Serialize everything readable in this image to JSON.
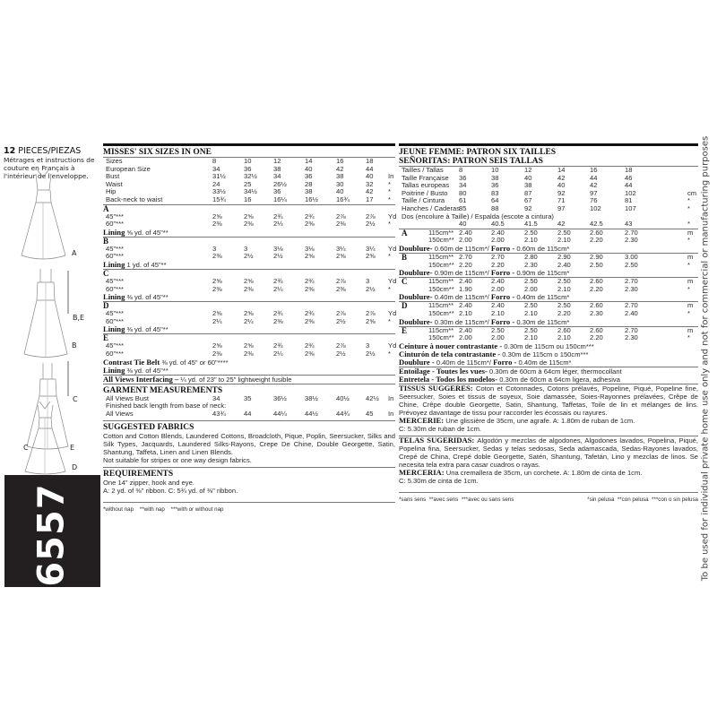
{
  "left": {
    "pieces_count": "12",
    "pieces_label": "PIECES/PIEZAS",
    "french_note": "Métrages et instructions de couture en Français à l'intérieur de l'enveloppe.",
    "view_labels": [
      "A",
      "B,E",
      "B",
      "C",
      "C",
      "E",
      "D"
    ],
    "pattern_number": "6557"
  },
  "vertical_notice": "To be used for individual private home use only and not for commercial or manufacturing purposes",
  "misses": {
    "title": "MISSES' SIX SIZES IN ONE",
    "size_rows": [
      {
        "label": "Sizes",
        "values": [
          "8",
          "10",
          "12",
          "14",
          "16",
          "18"
        ],
        "unit": ""
      },
      {
        "label": "European Size",
        "values": [
          "34",
          "36",
          "38",
          "40",
          "42",
          "44"
        ],
        "unit": ""
      },
      {
        "label": "Bust",
        "values": [
          "31½",
          "32½",
          "34",
          "36",
          "38",
          "40"
        ],
        "unit": "In"
      },
      {
        "label": "Waist",
        "values": [
          "24",
          "25",
          "26½",
          "28",
          "30",
          "32"
        ],
        "unit": "*"
      },
      {
        "label": "Hip",
        "values": [
          "33½",
          "34½",
          "36",
          "38",
          "40",
          "42"
        ],
        "unit": "*"
      },
      {
        "label": "Back-neck to waist",
        "values": [
          "15¾",
          "16",
          "16¼",
          "16½",
          "16¾",
          "17"
        ],
        "unit": "*"
      }
    ],
    "views": [
      {
        "letter": "A",
        "rows": [
          {
            "label": "45\"***",
            "values": [
              "2⅝",
              "2⅝",
              "2¾",
              "2¾",
              "2⅞",
              "2⅞"
            ],
            "unit": "Yd"
          },
          {
            "label": "60\"***",
            "values": [
              "2⅜",
              "2⅜",
              "2¼",
              "2⅜",
              "2⅜",
              "2½"
            ],
            "unit": "*"
          }
        ],
        "notes": [
          [
            {
              "b": true,
              "t": "Lining "
            },
            {
              "b": false,
              "t": "⅝ yd. of 45\"**"
            }
          ]
        ]
      },
      {
        "letter": "B",
        "rows": [
          {
            "label": "45\"***",
            "values": [
              "3",
              "3",
              "3⅛",
              "3⅛",
              "3¼",
              "3¼"
            ],
            "unit": "Yd"
          },
          {
            "label": "60\"***",
            "values": [
              "2⅜",
              "2½",
              "2½",
              "2⅝",
              "2⅝",
              "2⅝"
            ],
            "unit": "*"
          }
        ],
        "notes": [
          [
            {
              "b": true,
              "t": "Lining "
            },
            {
              "b": false,
              "t": "1 yd. of 45\"**"
            }
          ]
        ]
      },
      {
        "letter": "C",
        "rows": [
          {
            "label": "45\"***",
            "values": [
              "2⅝",
              "2⅝",
              "2¾",
              "2¾",
              "2⅞",
              "3"
            ],
            "unit": "Yd"
          },
          {
            "label": "60\"***",
            "values": [
              "2⅜",
              "2⅜",
              "2¼",
              "2⅜",
              "2⅜",
              "2½"
            ],
            "unit": "*"
          }
        ],
        "notes": [
          [
            {
              "b": true,
              "t": "Lining "
            },
            {
              "b": false,
              "t": "⅜ yd. of 45\"**"
            }
          ]
        ]
      },
      {
        "letter": "D",
        "rows": [
          {
            "label": "45\"***",
            "values": [
              "2⅝",
              "2⅝",
              "2¾",
              "2¾",
              "2⅞",
              "2⅞"
            ],
            "unit": "Yd"
          },
          {
            "label": "60\"***",
            "values": [
              "2¼",
              "2¼",
              "2⅜",
              "2⅜",
              "2½",
              "2⅝"
            ],
            "unit": "*"
          }
        ],
        "notes": [
          [
            {
              "b": true,
              "t": "Lining "
            },
            {
              "b": false,
              "t": "⅜ yd. of 45\"**"
            }
          ]
        ]
      },
      {
        "letter": "E",
        "rows": [
          {
            "label": "45\"***",
            "values": [
              "2⅝",
              "2⅝",
              "2¾",
              "2¾",
              "2⅞",
              "3"
            ],
            "unit": "Yd"
          },
          {
            "label": "60\"***",
            "values": [
              "2⅜",
              "2⅜",
              "2¼",
              "2⅜",
              "2½",
              "2½"
            ],
            "unit": "*"
          }
        ],
        "notes": [
          [
            {
              "b": true,
              "t": "Contrast Tie Belt "
            },
            {
              "b": false,
              "t": "⅜ yd. of 45\" or 60\"****"
            }
          ],
          [
            {
              "b": true,
              "t": "Lining "
            },
            {
              "b": false,
              "t": "⅜ yd. of 45\"**"
            }
          ]
        ]
      }
    ],
    "interfacing": [
      {
        "b": true,
        "t": "All Views Interfacing – "
      },
      {
        "b": false,
        "t": "¼ yd. of 23\" to 25\" lightweight fusible"
      }
    ],
    "garment": {
      "title": "GARMENT MEASUREMENTS",
      "rows": [
        {
          "label": "All Views Bust",
          "values": [
            "34",
            "35",
            "36½",
            "38½",
            "40½",
            "42½"
          ],
          "unit": "In"
        },
        {
          "label": "Finished back length from base of neck:",
          "values": [],
          "unit": ""
        },
        {
          "label": "All Views",
          "values": [
            "43¾",
            "44",
            "44¼",
            "44½",
            "44¾",
            "45"
          ],
          "unit": "In"
        }
      ]
    },
    "fabrics": {
      "title": "SUGGESTED FABRICS",
      "text": "Cotton and Cotton Blends, Laundered Cottons, Broadcloth, Pique, Poplin, Seersucker, Silks and Silk Types, Jacquards, Laundered Silks-Rayons, Crepe De Chine, Double Georgette, Satin, Shantung, Taffeta, Linen and Linen Blends.",
      "note": "Not suitable for stripes or one way design fabrics."
    },
    "requirements": {
      "title": "REQUIREMENTS",
      "lines": [
        "One 14\" zipper, hook and eye.",
        "A: 2 yd. of ⅜\" ribbon. C: 5¾ yd. of ⅜\" ribbon."
      ]
    },
    "footnote": "*without nap    **with nap    ***with or without nap"
  },
  "jeune": {
    "title_fr": "JEUNE FEMME: PATRON SIX TAILLES",
    "title_es": "SEÑORITAS: PATRON SEIS TALLAS",
    "size_rows": [
      {
        "label": "Tailles / Tallas",
        "values": [
          "8",
          "10",
          "12",
          "14",
          "16",
          "18"
        ],
        "unit": ""
      },
      {
        "label": "Taille Française",
        "values": [
          "36",
          "38",
          "40",
          "42",
          "44",
          "46"
        ],
        "unit": ""
      },
      {
        "label": "Tallas europeas",
        "values": [
          "34",
          "36",
          "38",
          "40",
          "42",
          "44"
        ],
        "unit": ""
      },
      {
        "label": "Poitrine / Busto",
        "values": [
          "80",
          "83",
          "87",
          "92",
          "97",
          "102"
        ],
        "unit": "cm"
      },
      {
        "label": "Taille / Cintura",
        "values": [
          "61",
          "64",
          "67",
          "71",
          "76",
          "81"
        ],
        "unit": "*"
      },
      {
        "label": "Hanches / Caderas",
        "values": [
          "85",
          "88",
          "92",
          "97",
          "102",
          "107"
        ],
        "unit": "*"
      },
      {
        "label": "Dos (encolure à Taille) / Espalda (escote a cintura)",
        "values": [],
        "unit": ""
      },
      {
        "label": "",
        "values": [
          "40",
          "40.5",
          "41.5",
          "42",
          "42.5",
          "43"
        ],
        "unit": "*"
      }
    ],
    "views": [
      {
        "letter": "A",
        "rows": [
          {
            "label": "115cm**",
            "values": [
              "2.40",
              "2.40",
              "2.50",
              "2.50",
              "2.60",
              "2.70"
            ],
            "unit": "m"
          },
          {
            "label": "150cm**",
            "values": [
              "2.00",
              "2.00",
              "2.10",
              "2.10",
              "2.20",
              "2.30"
            ],
            "unit": "*"
          }
        ],
        "notes": [
          [
            {
              "b": true,
              "t": "Doublure- "
            },
            {
              "b": false,
              "t": "0.60m de 115cm*/ "
            },
            {
              "b": true,
              "t": "Forro - "
            },
            {
              "b": false,
              "t": "0.60m de 115cm*"
            }
          ]
        ]
      },
      {
        "letter": "B",
        "rows": [
          {
            "label": "115cm**",
            "values": [
              "2.70",
              "2.70",
              "2.80",
              "2.90",
              "2.90",
              "3.00"
            ],
            "unit": "m"
          },
          {
            "label": "150cm**",
            "values": [
              "2.20",
              "2.20",
              "2.30",
              "2.40",
              "2.50",
              "2.50"
            ],
            "unit": "*"
          }
        ],
        "notes": [
          [
            {
              "b": true,
              "t": "Doublure- "
            },
            {
              "b": false,
              "t": "0.90m de 115cm*/ "
            },
            {
              "b": true,
              "t": "Forro - "
            },
            {
              "b": false,
              "t": "0.90m de 115cm*"
            }
          ]
        ]
      },
      {
        "letter": "C",
        "rows": [
          {
            "label": "115cm**",
            "values": [
              "2.40",
              "2.40",
              "2.50",
              "2.50",
              "2.60",
              "2.70"
            ],
            "unit": "m"
          },
          {
            "label": "150cm**",
            "values": [
              "1.90",
              "2.00",
              "2.00",
              "2.10",
              "2.20",
              "2.30"
            ],
            "unit": "*"
          }
        ],
        "notes": [
          [
            {
              "b": true,
              "t": "Doublure- "
            },
            {
              "b": false,
              "t": "0.40m de 115cm*/ "
            },
            {
              "b": true,
              "t": "Forro - "
            },
            {
              "b": false,
              "t": "0.40m de 115cm*"
            }
          ]
        ]
      },
      {
        "letter": "D",
        "rows": [
          {
            "label": "115cm**",
            "values": [
              "2.40",
              "2.40",
              "2.50",
              "2.50",
              "2.60",
              "2.70"
            ],
            "unit": "m"
          },
          {
            "label": "150cm**",
            "values": [
              "2.10",
              "2.10",
              "2.10",
              "2.20",
              "2.30",
              "2.40"
            ],
            "unit": "*"
          }
        ],
        "notes": [
          [
            {
              "b": true,
              "t": "Doublure- "
            },
            {
              "b": false,
              "t": "0.30m de 115cm*/ "
            },
            {
              "b": true,
              "t": "Forro - "
            },
            {
              "b": false,
              "t": "0.30m de 115cm*"
            }
          ]
        ]
      },
      {
        "letter": "E",
        "rows": [
          {
            "label": "115cm**",
            "values": [
              "2.40",
              "2.50",
              "2.50",
              "2.60",
              "2.60",
              "2.70"
            ],
            "unit": "m"
          },
          {
            "label": "150cm**",
            "values": [
              "2.00",
              "2.00",
              "2.10",
              "2.10",
              "2.20",
              "2.30"
            ],
            "unit": "*"
          }
        ],
        "notes": [
          [
            {
              "b": true,
              "t": "Ceinture à nouer contrastante - "
            },
            {
              "b": false,
              "t": "0.30m de 115cm ou 150cm***"
            }
          ],
          [
            {
              "b": true,
              "t": "Cinturón de tela contrastante - "
            },
            {
              "b": false,
              "t": "0.30m de 115cm o 150cm***"
            }
          ],
          [
            {
              "b": true,
              "t": "Doublure - "
            },
            {
              "b": false,
              "t": "0.40m de 115cm*/ "
            },
            {
              "b": true,
              "t": "Forro - "
            },
            {
              "b": false,
              "t": "0.40m de 115cm*"
            }
          ]
        ]
      }
    ],
    "interfacing": [
      [
        {
          "b": true,
          "t": "Entoilage - Toutes les vues- "
        },
        {
          "b": false,
          "t": "0.30m de 60cm à 64cm léger, thermocollant"
        }
      ],
      [
        {
          "b": true,
          "t": "Entretela - Todos los modelos- "
        },
        {
          "b": false,
          "t": "0.30m de 60cm a 64cm ligera, adhesiva"
        }
      ]
    ],
    "fr_block": [
      [
        {
          "b": true,
          "t": "TISSUS SUGGERES: "
        },
        {
          "b": false,
          "t": "Coton et Cotonnades, Cotons prélavés, Popeline, Piqué, Popeline fine, Seersucker, Soies et tissus de soyeux, Soie damassée, Soies-Rayonnes prélavées, Crêpe de Chine, Crêpe double Georgette, Satin, Shantung, Taffetas, Toile de lin et mélanges de lins. Prévoyez davantage de tissu pour raccorder les écossais ou rayures."
        }
      ],
      [
        {
          "b": true,
          "t": "MERCERIE: "
        },
        {
          "b": false,
          "t": "Une glissière de 35cm, une agrafe. A: 1.80m de ruban de 1cm."
        }
      ],
      [
        {
          "b": false,
          "t": "C: 5.30m de ruban de 1cm."
        }
      ]
    ],
    "es_block": [
      [
        {
          "b": true,
          "t": "TELAS SUGERIDAS: "
        },
        {
          "b": false,
          "t": "Algodón y mezclas de algodones, Algodones lavados, Popelina, Piqué, Popelina fina, Seersucker, Sedas y telas sedosas, Seda adamascada, Sedas-Rayones lavados, Crepé de China, Crepé doble Georgette, Satén, Shantung, Tafetán, Lino y mezclas de linos. Se necesita tela extra para casar cuadros o rayas."
        }
      ],
      [
        {
          "b": true,
          "t": "MERCERIA: "
        },
        {
          "b": false,
          "t": "Una cremallera de 35cm, un corchete. A: 1.80m de cinta de 1cm."
        }
      ],
      [
        {
          "b": false,
          "t": "C: 5.30m de cinta de 1cm."
        }
      ]
    ],
    "footnote_fr": "*sans sens  **avec sens  ***avec ou sans sens",
    "footnote_es": "*sin pelusa  **con pelusa  ***con o sin pelusa"
  }
}
